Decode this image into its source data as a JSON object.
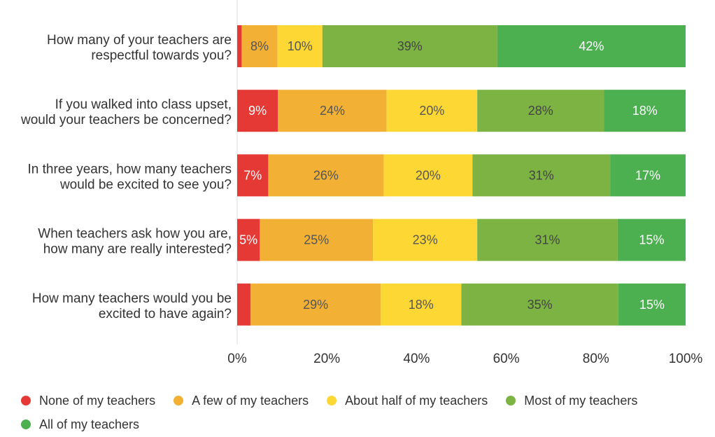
{
  "chart_data": {
    "type": "bar",
    "orientation": "horizontal",
    "stacked": true,
    "categories": [
      "How many of your teachers are respectful towards you?",
      "If you walked into class upset, would your teachers be concerned?",
      "In three years, how many teachers would be excited to see you?",
      "When teachers ask how you are, how many are really interested?",
      "How many teachers would you be excited to have again?"
    ],
    "category_lines": [
      [
        "How many of your teachers are",
        "respectful towards you?"
      ],
      [
        "If you walked into class upset,",
        "would your teachers be concerned?"
      ],
      [
        "In three years, how many teachers",
        "would be excited to see you?"
      ],
      [
        "When teachers ask how you are,",
        "how many are really interested?"
      ],
      [
        "How many teachers would you be",
        "excited to have again?"
      ]
    ],
    "series": [
      {
        "name": "None of my teachers",
        "color": "#e53935",
        "label_color": "#ffffff",
        "values": [
          1,
          9,
          7,
          5,
          3
        ],
        "labels": [
          "",
          "9%",
          "7%",
          "5%",
          ""
        ]
      },
      {
        "name": "A few of my teachers",
        "color": "#f2b134",
        "label_color": "#555555",
        "values": [
          8,
          24,
          26,
          25,
          29
        ],
        "labels": [
          "8%",
          "24%",
          "26%",
          "25%",
          "29%"
        ]
      },
      {
        "name": "About half of my teachers",
        "color": "#fdd835",
        "label_color": "#555555",
        "values": [
          10,
          20,
          20,
          23,
          18
        ],
        "labels": [
          "10%",
          "20%",
          "20%",
          "23%",
          "18%"
        ]
      },
      {
        "name": "Most of my teachers",
        "color": "#7cb342",
        "label_color": "#444444",
        "values": [
          39,
          28,
          31,
          31,
          35
        ],
        "labels": [
          "39%",
          "28%",
          "31%",
          "31%",
          "35%"
        ]
      },
      {
        "name": "All of my teachers",
        "color": "#4caf50",
        "label_color": "#ffffff",
        "values": [
          42,
          18,
          17,
          15,
          15
        ],
        "labels": [
          "42%",
          "18%",
          "17%",
          "15%",
          "15%"
        ]
      }
    ],
    "xlim": [
      0,
      100
    ],
    "x_ticks": [
      "0%",
      "20%",
      "40%",
      "60%",
      "80%",
      "100%"
    ],
    "legend_position": "bottom",
    "grid": false
  }
}
